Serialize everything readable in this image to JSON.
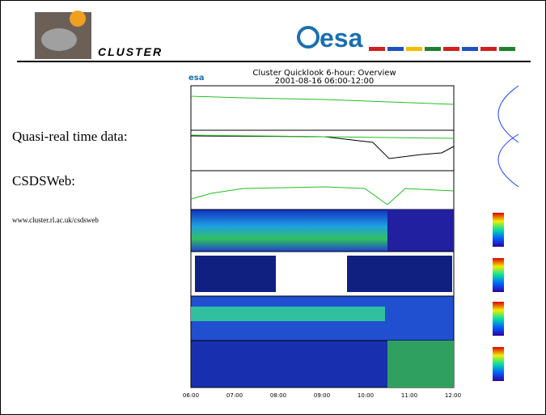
{
  "header": {
    "title": "CLUSTER",
    "logo": "esa"
  },
  "body": {
    "items": [
      "Quasi-real time data:",
      "CSDSWeb:",
      "www.cluster.rl.ac.uk/csdsweb"
    ]
  },
  "figure": {
    "logo": "esa",
    "title": "Cluster Quicklook 6-hour: Overview",
    "subtitle": "2001-08-16 06:00-12:00",
    "x_labels": [
      "06:00",
      "07:00",
      "08:00",
      "09:00",
      "10:00",
      "11:00",
      "12:00"
    ]
  }
}
